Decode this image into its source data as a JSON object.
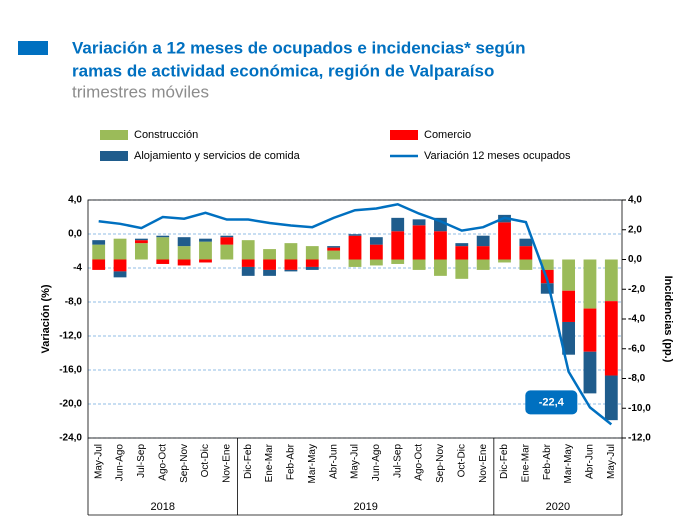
{
  "chart_data": {
    "type": "bar-line",
    "title": [
      "Variación a 12 meses de ocupados e incidencias*  según",
      "ramas de actividad económica, región de Valparaíso"
    ],
    "subtitle": "trimestres móviles",
    "ylabel": "Variación (%)",
    "y2label": "Incidencias (pp.)",
    "groups": [
      {
        "label": "2018",
        "categories": [
          "May-Jul",
          "Jun-Ago",
          "Jul-Sep",
          "Ago-Oct",
          "Sep-Nov",
          "Oct-Dic",
          "Nov-Ene"
        ]
      },
      {
        "label": "2019",
        "categories": [
          "Dic-Feb",
          "Ene-Mar",
          "Feb-Abr",
          "Mar-May",
          "Abr-Jun",
          "May-Jul",
          "Jun-Ago",
          "Jul-Sep",
          "Ago-Oct",
          "Sep-Nov",
          "Oct-Dic",
          "Nov-Ene"
        ]
      },
      {
        "label": "2020",
        "categories": [
          "Dic-Feb",
          "Ene-Mar",
          "Feb-Abr",
          "Mar-May",
          "Abr-Jun",
          "May-Jul"
        ]
      }
    ],
    "series": [
      {
        "name": "Construcción",
        "color": "#9bbb59",
        "type": "bar",
        "axis": "y2",
        "values": [
          1.0,
          1.4,
          1.1,
          1.5,
          0.9,
          1.2,
          1.0,
          1.3,
          0.7,
          1.1,
          0.9,
          0.6,
          -0.5,
          -0.4,
          -0.3,
          -0.7,
          -1.1,
          -1.3,
          -0.7,
          -0.2,
          -0.7,
          -0.7,
          -2.1,
          -3.3,
          -2.8
        ]
      },
      {
        "name": "Comercio",
        "color": "#ff0000",
        "type": "bar",
        "axis": "y2",
        "values": [
          -0.7,
          -0.8,
          0.2,
          -0.3,
          -0.4,
          -0.2,
          0.5,
          -0.5,
          -0.7,
          -0.7,
          -0.5,
          0.2,
          1.6,
          1.0,
          1.9,
          2.3,
          1.9,
          0.9,
          0.9,
          2.5,
          0.9,
          -0.9,
          -2.1,
          -2.9,
          -5.0
        ]
      },
      {
        "name": "Alojamiento y  servicios de comida",
        "color": "#1f5c8c",
        "type": "bar",
        "axis": "y2",
        "values": [
          0.3,
          -0.4,
          0.1,
          0.1,
          0.6,
          0.2,
          0.1,
          -0.6,
          -0.4,
          -0.1,
          -0.2,
          0.1,
          0.1,
          0.5,
          0.9,
          0.4,
          0.9,
          0.2,
          0.7,
          0.5,
          0.5,
          -0.7,
          -2.2,
          -2.8,
          -3.0
        ]
      },
      {
        "name": "Variación 12 meses ocupados",
        "color": "#0070c0",
        "type": "line",
        "values": [
          1.5,
          1.2,
          0.7,
          2.0,
          1.8,
          2.5,
          1.7,
          1.7,
          1.3,
          1.0,
          0.8,
          1.9,
          2.8,
          3.0,
          3.5,
          2.4,
          1.5,
          0.4,
          0.8,
          1.9,
          1.4,
          -5.4,
          -16.2,
          -20.4,
          -22.4
        ],
        "value_labels": [
          null,
          null,
          null,
          null,
          null,
          null,
          null,
          null,
          null,
          null,
          null,
          null,
          null,
          null,
          null,
          null,
          null,
          null,
          null,
          null,
          null,
          null,
          null,
          null,
          "-22,4"
        ]
      }
    ],
    "ylim": [
      -24,
      4
    ],
    "yticks": [
      {
        "value": 4,
        "label": "4,0"
      },
      {
        "value": 0,
        "label": "0,0"
      },
      -4,
      {
        "value": -8,
        "label": "-8,0"
      },
      {
        "value": -12,
        "label": "-12,0"
      },
      {
        "value": -16,
        "label": "-16,0"
      },
      {
        "value": -20,
        "label": "-20,0"
      },
      {
        "value": -24,
        "label": "-24,0"
      }
    ],
    "y2lim": [
      -12,
      4
    ],
    "y2ticks": [
      {
        "value": 4,
        "label": "4,0"
      },
      {
        "value": 2,
        "label": "2,0"
      },
      {
        "value": 0,
        "label": "0,0"
      },
      {
        "value": -2,
        "label": "-2,0"
      },
      {
        "value": -4,
        "label": "-4,0"
      },
      {
        "value": -6,
        "label": "-6,0"
      },
      {
        "value": -8,
        "label": "-8,0"
      },
      {
        "value": -10,
        "label": "-10,0"
      },
      {
        "value": -12,
        "label": "-12,0"
      }
    ],
    "grid": true
  }
}
